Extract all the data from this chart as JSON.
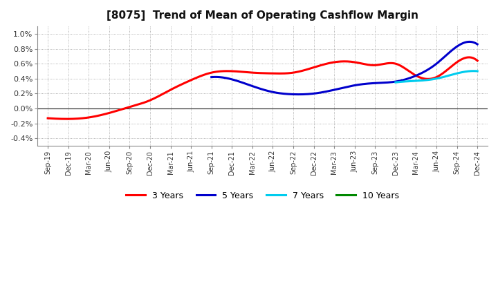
{
  "title": "[8075]  Trend of Mean of Operating Cashflow Margin",
  "title_fontsize": 11,
  "background_color": "#ffffff",
  "plot_bg_color": "#ffffff",
  "grid_color": "#999999",
  "x_labels": [
    "Sep-19",
    "Dec-19",
    "Mar-20",
    "Jun-20",
    "Sep-20",
    "Dec-20",
    "Mar-21",
    "Jun-21",
    "Sep-21",
    "Dec-21",
    "Mar-22",
    "Jun-22",
    "Sep-22",
    "Dec-22",
    "Mar-23",
    "Jun-23",
    "Sep-23",
    "Dec-23",
    "Mar-24",
    "Jun-24",
    "Sep-24",
    "Dec-24"
  ],
  "ylim": [
    -0.5,
    1.1
  ],
  "yticks": [
    -0.4,
    -0.2,
    0.0,
    0.2,
    0.4,
    0.6,
    0.8,
    1.0
  ],
  "ytick_labels": [
    "-0.4%",
    "-0.2%",
    "0.0%",
    "0.2%",
    "0.4%",
    "0.6%",
    "0.8%",
    "1.0%"
  ],
  "series": {
    "3 Years": {
      "color": "#ff0000",
      "data_x": [
        0,
        1,
        2,
        3,
        4,
        5,
        6,
        7,
        8,
        9,
        10,
        11,
        12,
        13,
        14,
        15,
        16,
        17,
        18,
        19,
        20,
        21
      ],
      "data_y": [
        -0.13,
        -0.14,
        -0.12,
        -0.06,
        0.02,
        0.11,
        0.25,
        0.38,
        0.48,
        0.5,
        0.48,
        0.47,
        0.48,
        0.55,
        0.62,
        0.62,
        0.58,
        0.6,
        0.44,
        0.42,
        0.62,
        0.64
      ]
    },
    "5 Years": {
      "color": "#0000cc",
      "data_x": [
        8,
        9,
        10,
        11,
        12,
        13,
        14,
        15,
        16,
        17,
        18,
        19,
        20,
        21
      ],
      "data_y": [
        0.42,
        0.39,
        0.3,
        0.22,
        0.19,
        0.2,
        0.25,
        0.31,
        0.34,
        0.36,
        0.44,
        0.6,
        0.83,
        0.86
      ]
    },
    "7 Years": {
      "color": "#00ccee",
      "data_x": [
        17,
        18,
        19,
        20,
        21
      ],
      "data_y": [
        0.35,
        0.37,
        0.4,
        0.47,
        0.5
      ]
    },
    "10 Years": {
      "color": "#008800",
      "data_x": [],
      "data_y": []
    }
  },
  "legend": {
    "labels": [
      "3 Years",
      "5 Years",
      "7 Years",
      "10 Years"
    ],
    "colors": [
      "#ff0000",
      "#0000cc",
      "#00ccee",
      "#008800"
    ]
  }
}
